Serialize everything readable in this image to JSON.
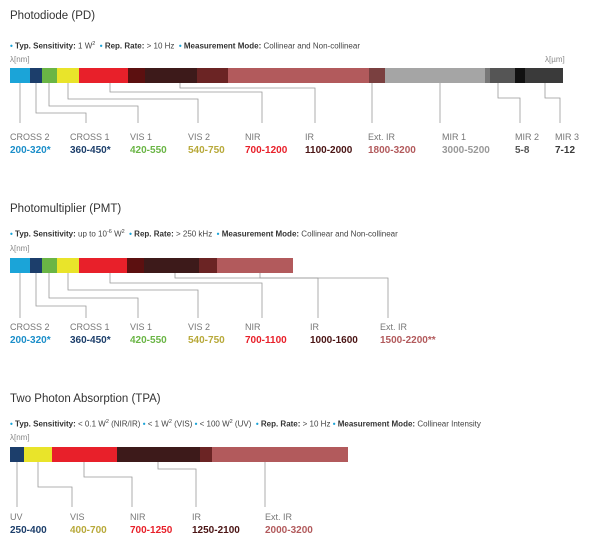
{
  "sections": [
    {
      "id": "pd",
      "title": "Photodiode (PD)",
      "specs": [
        {
          "label": "Typ. Sensitivity:",
          "value": "1 W",
          "sup": "2"
        },
        {
          "label": "Rep. Rate:",
          "value": "> 10 Hz"
        },
        {
          "label": "Measurement Mode:",
          "value": "Collinear and Non-collinear"
        }
      ],
      "unit_left": "λ[nm]",
      "unit_right": "λ[µm]",
      "bands": [
        {
          "name": "CROSS 2",
          "range": "200-320*",
          "color": "#1ba4d8",
          "text_color": "#1b8ec9"
        },
        {
          "name": "CROSS 1",
          "range": "360-450*",
          "color": "#1c3e6b",
          "text_color": "#1c3e6b"
        },
        {
          "name": "VIS 1",
          "range": "420-550",
          "color": "#6ab545",
          "text_color": "#6ab545"
        },
        {
          "name": "VIS 2",
          "range": "540-750",
          "color": "#e9e42a",
          "text_color": "#b8a93a"
        },
        {
          "name": "NIR",
          "range": "700-1200",
          "color": "#e8202a",
          "text_color": "#e8202a"
        },
        {
          "name": "IR",
          "range": "1100-2000",
          "color": "#4a1414",
          "text_color": "#4a1414"
        },
        {
          "name": "Ext. IR",
          "range": "1800-3200",
          "color": "#b25a5c",
          "text_color": "#b25a5c"
        },
        {
          "name": "MIR 1",
          "range": "3000-5200",
          "color": "#a5a5a5",
          "text_color": "#999999"
        },
        {
          "name": "MIR 2",
          "range": "5-8",
          "color": "#555555",
          "text_color": "#555555"
        },
        {
          "name": "MIR 3",
          "range": "7-12",
          "color": "#3a3a3a",
          "text_color": "#3a3a3a"
        }
      ]
    },
    {
      "id": "pmt",
      "title": "Photomultiplier (PMT)",
      "specs": [
        {
          "label": "Typ. Sensitivity:",
          "value": "up to 10",
          "sup": "-6",
          "suffix": " W",
          "sup2": "2"
        },
        {
          "label": "Rep. Rate:",
          "value": "> 250 kHz"
        },
        {
          "label": "Measurement Mode:",
          "value": "Collinear and Non-collinear"
        }
      ],
      "unit_left": "λ[nm]",
      "bands": [
        {
          "name": "CROSS 2",
          "range": "200-320*",
          "color": "#1ba4d8",
          "text_color": "#1b8ec9"
        },
        {
          "name": "CROSS 1",
          "range": "360-450*",
          "color": "#1c3e6b",
          "text_color": "#1c3e6b"
        },
        {
          "name": "VIS 1",
          "range": "420-550",
          "color": "#6ab545",
          "text_color": "#6ab545"
        },
        {
          "name": "VIS 2",
          "range": "540-750",
          "color": "#e9e42a",
          "text_color": "#b8a93a"
        },
        {
          "name": "NIR",
          "range": "700-1100",
          "color": "#e8202a",
          "text_color": "#e8202a"
        },
        {
          "name": "IR",
          "range": "1000-1600",
          "color": "#4a1414",
          "text_color": "#4a1414"
        },
        {
          "name": "Ext. IR",
          "range": "1500-2200**",
          "color": "#b25a5c",
          "text_color": "#b25a5c"
        }
      ]
    },
    {
      "id": "tpa",
      "title": "Two Photon Absorption (TPA)",
      "specs": [
        {
          "label": "Typ. Sensitivity:",
          "value": "< 0.1 W",
          "sup": "2",
          "suffix": " (NIR/IR)"
        },
        {
          "label": "",
          "value": "< 1 W",
          "sup": "2",
          "suffix": " (VIS)"
        },
        {
          "label": "",
          "value": "< 100 W",
          "sup": "2",
          "suffix": " (UV)"
        },
        {
          "label": "Rep. Rate:",
          "value": "> 10 Hz"
        },
        {
          "label": "Measurement Mode:",
          "value": "Collinear Intensity"
        }
      ],
      "unit_left": "λ[nm]",
      "bands": [
        {
          "name": "UV",
          "range": "250-400",
          "color": "#1c3e6b",
          "text_color": "#1c3e6b"
        },
        {
          "name": "VIS",
          "range": "400-700",
          "color": "#e9e42a",
          "text_color": "#b8a93a"
        },
        {
          "name": "NIR",
          "range": "700-1250",
          "color": "#e8202a",
          "text_color": "#e8202a"
        },
        {
          "name": "IR",
          "range": "1250-2100",
          "color": "#4a1414",
          "text_color": "#4a1414"
        },
        {
          "name": "Ext. IR",
          "range": "2000-3200",
          "color": "#b25a5c",
          "text_color": "#b25a5c"
        }
      ]
    }
  ]
}
